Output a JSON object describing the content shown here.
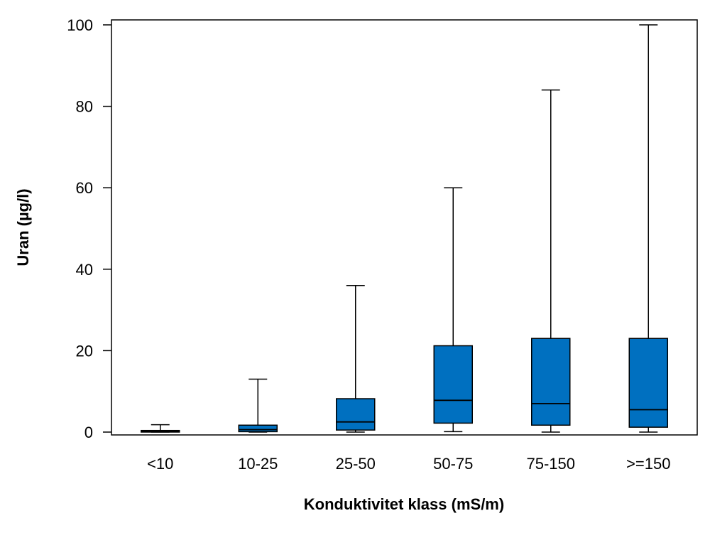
{
  "chart_data": {
    "type": "box",
    "title": "",
    "xlabel": "Konduktivitet klass (mS/m)",
    "ylabel": "Uran (µg/l)",
    "ylim": [
      0,
      100
    ],
    "yticks": [
      0,
      20,
      40,
      60,
      80,
      100
    ],
    "grid": false,
    "box_color": "#0070C0",
    "categories": [
      "<10",
      "10-25",
      "25-50",
      "50-75",
      "75-150",
      ">=150"
    ],
    "boxes": [
      {
        "category": "<10",
        "min": 0,
        "q1": 0,
        "median": 0.2,
        "q3": 0.4,
        "max": 1.8
      },
      {
        "category": "10-25",
        "min": 0,
        "q1": 0.1,
        "median": 0.6,
        "q3": 1.7,
        "max": 13
      },
      {
        "category": "25-50",
        "min": 0,
        "q1": 0.5,
        "median": 2.5,
        "q3": 8.2,
        "max": 36
      },
      {
        "category": "50-75",
        "min": 0.1,
        "q1": 2.2,
        "median": 7.8,
        "q3": 21.2,
        "max": 60
      },
      {
        "category": "75-150",
        "min": 0,
        "q1": 1.7,
        "median": 7,
        "q3": 23,
        "max": 84
      },
      {
        "category": ">=150",
        "min": 0,
        "q1": 1.2,
        "median": 5.5,
        "q3": 23,
        "max": 100
      }
    ]
  }
}
